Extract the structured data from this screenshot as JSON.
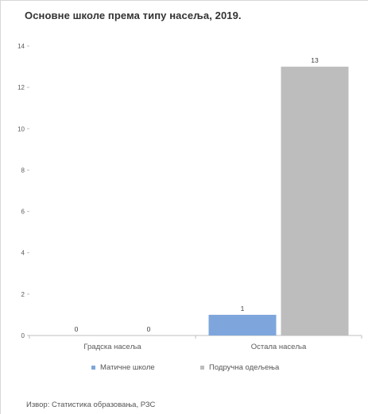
{
  "chart_data": {
    "type": "bar",
    "title": "Основне школе према типу насеља, 2019.",
    "categories": [
      "Градска насеља",
      "Остала насеља"
    ],
    "series": [
      {
        "name": "Матичне школе",
        "values": [
          0,
          1
        ],
        "color": "#7ea6dc"
      },
      {
        "name": "Подручна одељења",
        "values": [
          0,
          13
        ],
        "color": "#bdbdbd"
      }
    ],
    "data_labels": [
      [
        "0",
        "0"
      ],
      [
        "1",
        "13"
      ]
    ],
    "ylim": [
      0,
      14
    ],
    "yticks": [
      0,
      2,
      4,
      6,
      8,
      10,
      12,
      14
    ],
    "grid": false,
    "legend_position": "bottom",
    "source": "Извор: Статистика образовања, РЗС"
  }
}
